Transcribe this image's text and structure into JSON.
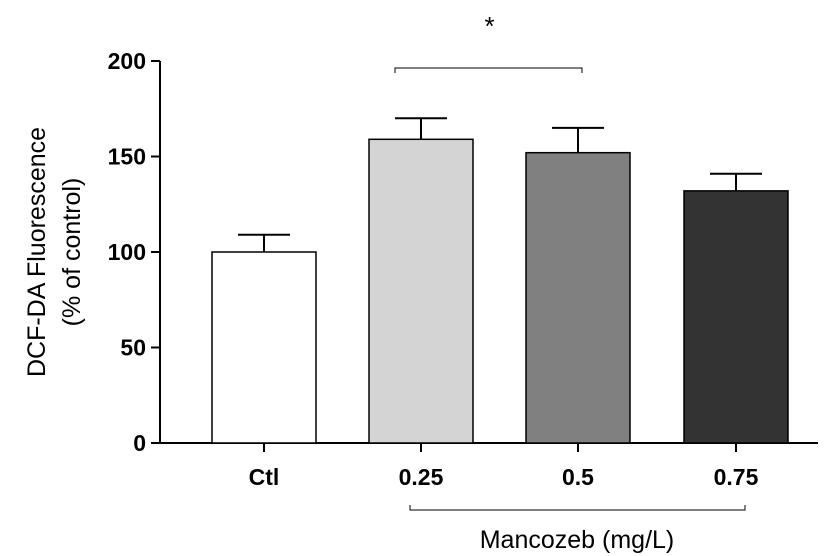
{
  "chart_data": {
    "type": "bar",
    "categories": [
      "Ctl",
      "0.25",
      "0.5",
      "0.75"
    ],
    "values": [
      100,
      159,
      152,
      132
    ],
    "errors": [
      9,
      11,
      13,
      9
    ],
    "bar_colors": [
      "#ffffff",
      "#d4d4d4",
      "#808080",
      "#333333"
    ],
    "ylabel_line1": "DCF-DA Fluorescence",
    "ylabel_line2": "(% of control)",
    "group_label": "Mancozeb (mg/L)",
    "ylim": [
      0,
      200
    ],
    "yticks": [
      0,
      50,
      100,
      150,
      200
    ],
    "significance": {
      "from": "0.25",
      "to": "0.5",
      "label": "*"
    },
    "grid": false
  }
}
